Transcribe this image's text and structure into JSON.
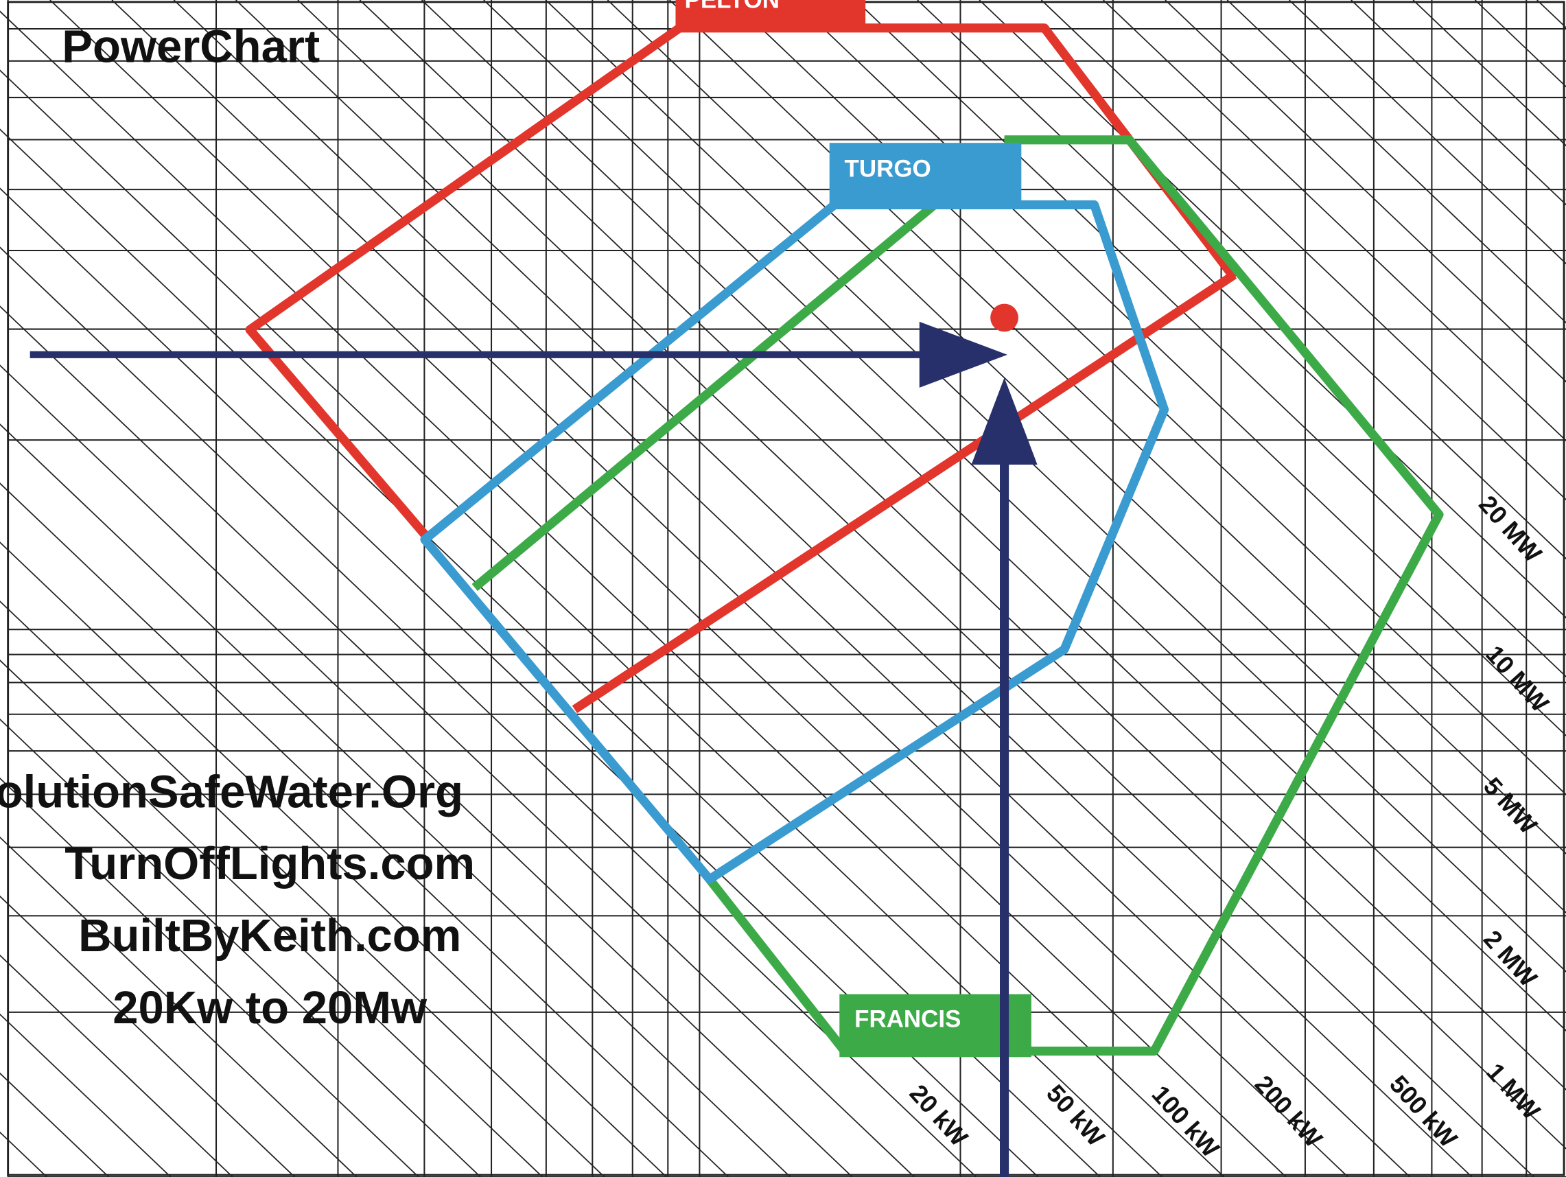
{
  "header": {
    "title": "PowerChart"
  },
  "turbines": [
    "PELTON",
    "TURGO",
    "FRANCIS"
  ],
  "watermark": [
    "olutionSafeWater.Org",
    "TurnOffLights.com",
    "BuiltByKeith.com",
    "20Kw to 20Mw"
  ],
  "power_lines": [
    "20 MW",
    "10 MW",
    "5 MW",
    "2 MW",
    "1 MW",
    "500 kW",
    "200 kW",
    "100 kW",
    "50 kW",
    "20 kW"
  ]
}
